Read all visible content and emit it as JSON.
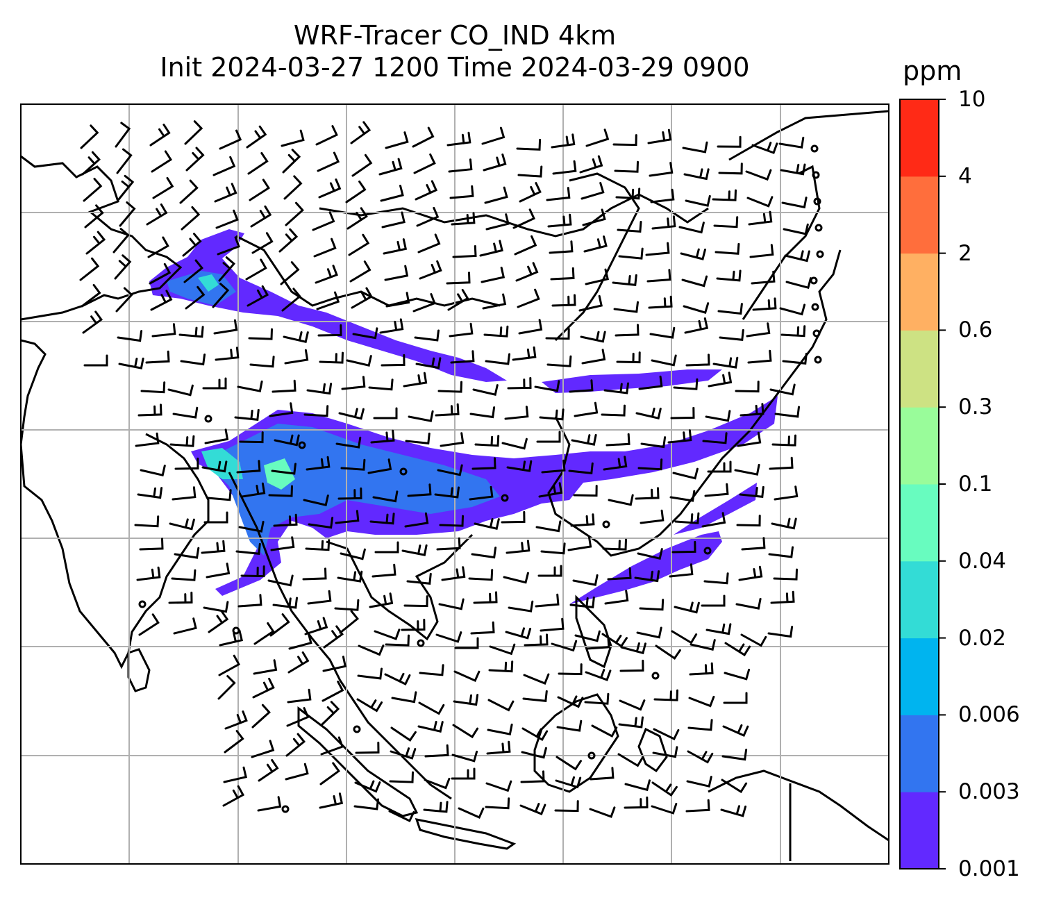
{
  "title": {
    "line1": "WRF-Tracer CO_IND 4km",
    "line2": "Init 2024-03-27 1200 Time 2024-03-29 0900"
  },
  "colorbar": {
    "unit": "ppm",
    "ticks": [
      "0.001",
      "0.003",
      "0.006",
      "0.02",
      "0.04",
      "0.1",
      "0.3",
      "0.6",
      "2",
      "4",
      "10"
    ],
    "colors": [
      "#6229ff",
      "#3275f0",
      "#00b4ef",
      "#33dcd6",
      "#68fcbf",
      "#99fc9a",
      "#cde283",
      "#ffb062",
      "#ff6e3c",
      "#ff2a16"
    ]
  },
  "map": {
    "gridlines": true,
    "colors": {
      "coast": "#000000",
      "grid": "#b0b0b0",
      "barb": "#000000"
    }
  }
}
